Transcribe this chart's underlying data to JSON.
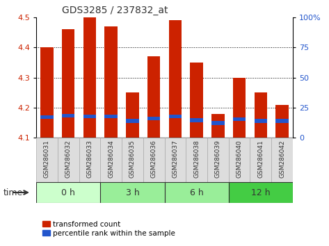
{
  "title": "GDS3285 / 237832_at",
  "samples": [
    "GSM286031",
    "GSM286032",
    "GSM286033",
    "GSM286034",
    "GSM286035",
    "GSM286036",
    "GSM286037",
    "GSM286038",
    "GSM286039",
    "GSM286040",
    "GSM286041",
    "GSM286042"
  ],
  "bar_tops": [
    4.4,
    4.46,
    4.5,
    4.47,
    4.25,
    4.37,
    4.49,
    4.35,
    4.18,
    4.3,
    4.25,
    4.21
  ],
  "blue_positions": [
    4.163,
    4.168,
    4.165,
    4.165,
    4.15,
    4.158,
    4.165,
    4.152,
    4.143,
    4.155,
    4.15,
    4.15
  ],
  "blue_heights": [
    0.012,
    0.012,
    0.012,
    0.012,
    0.012,
    0.012,
    0.012,
    0.012,
    0.012,
    0.012,
    0.012,
    0.012
  ],
  "bar_bottom": 4.1,
  "ylim": [
    4.1,
    4.5
  ],
  "yticks": [
    4.1,
    4.2,
    4.3,
    4.4,
    4.5
  ],
  "right_ytick_vals": [
    0,
    25,
    50,
    75,
    100
  ],
  "right_ytick_positions": [
    4.1,
    4.2,
    4.3,
    4.4,
    4.5
  ],
  "bar_color": "#cc2200",
  "blue_color": "#2255cc",
  "group_starts": [
    0,
    3,
    6,
    9
  ],
  "group_ends": [
    3,
    6,
    9,
    12
  ],
  "group_labels": [
    "0 h",
    "3 h",
    "6 h",
    "12 h"
  ],
  "group_colors": [
    "#ccffcc",
    "#99ee99",
    "#99ee99",
    "#44cc44"
  ],
  "time_label": "time",
  "bar_width": 0.6,
  "grid_color": "#000000",
  "bg_color": "#ffffff",
  "tick_label_color_left": "#cc2200",
  "tick_label_color_right": "#2255cc",
  "legend_red_label": "transformed count",
  "legend_blue_label": "percentile rank within the sample",
  "fig_width": 4.73,
  "fig_height": 3.54
}
